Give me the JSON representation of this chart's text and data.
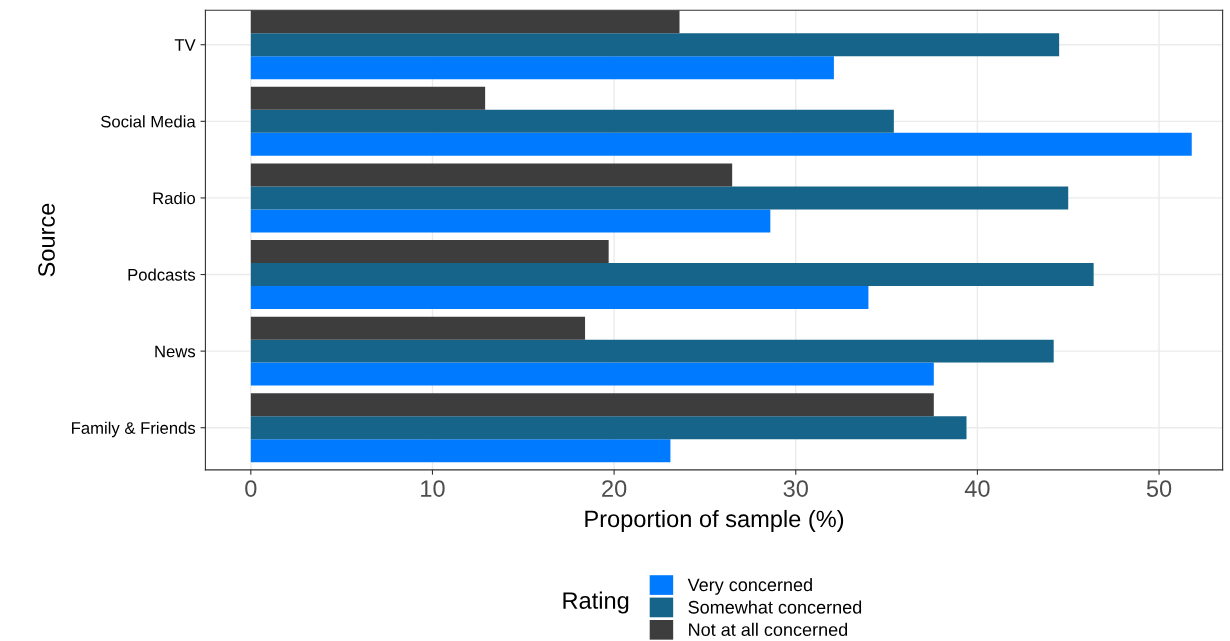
{
  "chart_data": {
    "type": "bar",
    "orientation": "horizontal",
    "xlabel": "Proportion of sample (%)",
    "ylabel": "Source",
    "legend_title": "Rating",
    "categories": [
      "TV",
      "Social Media",
      "Radio",
      "Podcasts",
      "News",
      "Family & Friends"
    ],
    "series": [
      {
        "name": "Very concerned",
        "color": "#007bff",
        "values": [
          32.1,
          51.8,
          28.6,
          34.0,
          37.6,
          23.1
        ]
      },
      {
        "name": "Somewhat concerned",
        "color": "#17648a",
        "values": [
          44.5,
          35.4,
          45.0,
          46.4,
          44.2,
          39.4
        ]
      },
      {
        "name": "Not at all concerned",
        "color": "#3d3d3d",
        "values": [
          23.6,
          12.9,
          26.5,
          19.7,
          18.4,
          37.6
        ]
      }
    ],
    "xlim": [
      -2.5,
      53.5
    ],
    "xticks": [
      0,
      10,
      20,
      30,
      40,
      50
    ],
    "grid": true,
    "legend": "bottom"
  }
}
